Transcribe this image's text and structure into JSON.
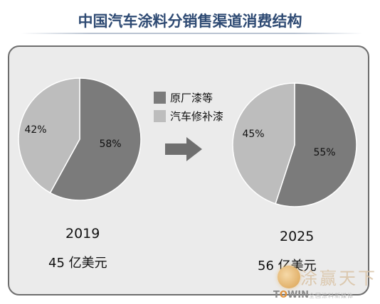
{
  "title": "中国汽车涂料分销售渠道消费结构",
  "colors": {
    "title": "#2E4A73",
    "oem": "#7b7b7b",
    "refinish": "#bdbdbd",
    "panel_bg": "#ebebeb"
  },
  "chart_data": {
    "type": "pie",
    "title": "中国汽车涂料分销售渠道消费结构",
    "legend": [
      "原厂漆等",
      "汽车修补漆"
    ],
    "legend_placement": "center",
    "charts": [
      {
        "year": "2019",
        "total_label": "45 亿美元",
        "slices": [
          {
            "name": "原厂漆等",
            "value": 58,
            "label": "58%"
          },
          {
            "name": "汽车修补漆",
            "value": 42,
            "label": "42%"
          }
        ]
      },
      {
        "year": "2025",
        "total_label": "56 亿美元",
        "slices": [
          {
            "name": "原厂漆等",
            "value": 55,
            "label": "55%"
          },
          {
            "name": "汽车修补漆",
            "value": 45,
            "label": "45%"
          }
        ]
      }
    ]
  },
  "legend": {
    "items": [
      {
        "label": "原厂漆等",
        "color": "#7b7b7b"
      },
      {
        "label": "汽车修补漆",
        "color": "#bdbdbd"
      }
    ]
  },
  "watermark": {
    "text": "涂赢天下",
    "brand_prefix": "T",
    "brand_o": "O",
    "brand_suffix": "WIN",
    "tagline": "全国涂料新媒体"
  }
}
